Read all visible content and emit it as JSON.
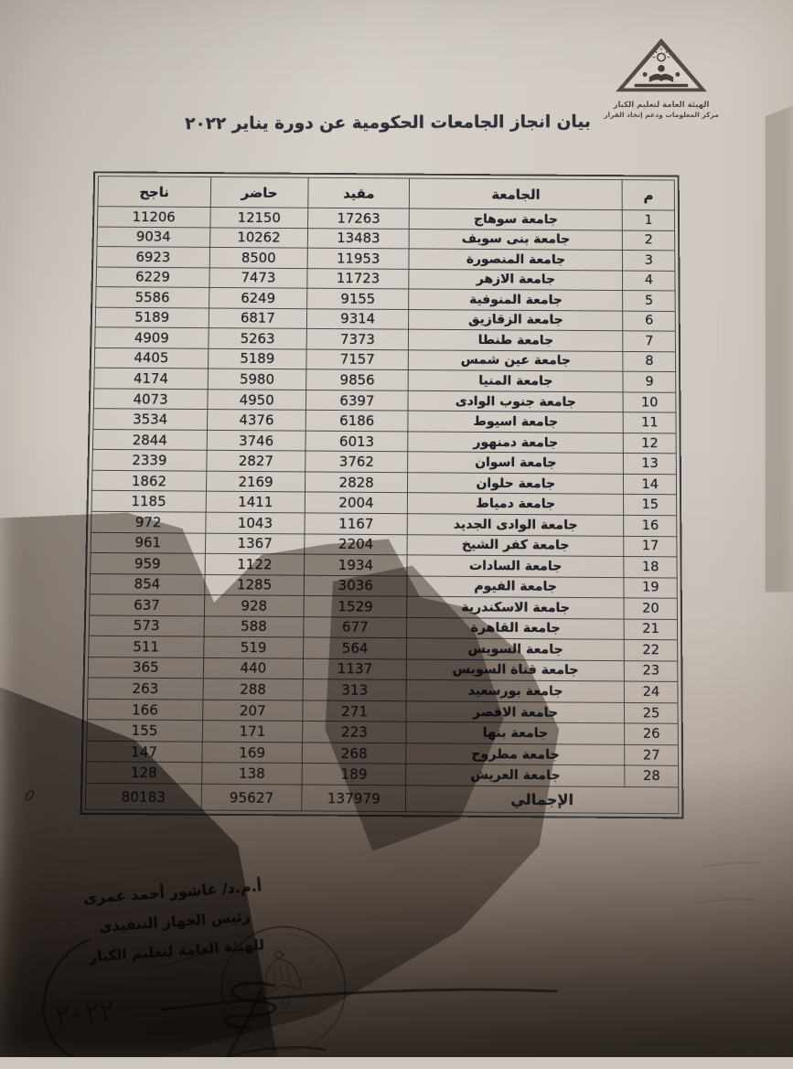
{
  "page": {
    "kind": "scanned-photographed-document",
    "paper_color": "#cfc8c0",
    "ink_color": "#26262a",
    "shadow_color": "#3a2f28"
  },
  "logo": {
    "icon": "pyramid-book-logo",
    "org_line1": "الهيئة العامة لتعليم الكبار",
    "org_line2": "مركز المعلومات ودعم إتخاذ القرار"
  },
  "doc": {
    "title": "بيان انجاز الجامعات الحكومية عن دورة يناير ٢٠٢٢"
  },
  "table": {
    "headers": {
      "rank": "م",
      "university": "الجامعة",
      "enrolled": "مقيد",
      "attended": "حاضر",
      "passed": "ناجح"
    },
    "rows": [
      {
        "rank": "1",
        "university": "جامعة سوهاج",
        "enrolled": "17263",
        "attended": "12150",
        "passed": "11206"
      },
      {
        "rank": "2",
        "university": "جامعة بنى سويف",
        "enrolled": "13483",
        "attended": "10262",
        "passed": "9034"
      },
      {
        "rank": "3",
        "university": "جامعة المنصورة",
        "enrolled": "11953",
        "attended": "8500",
        "passed": "6923"
      },
      {
        "rank": "4",
        "university": "جامعة الازهر",
        "enrolled": "11723",
        "attended": "7473",
        "passed": "6229"
      },
      {
        "rank": "5",
        "university": "جامعة المنوفية",
        "enrolled": "9155",
        "attended": "6249",
        "passed": "5586"
      },
      {
        "rank": "6",
        "university": "جامعة الزقازيق",
        "enrolled": "9314",
        "attended": "6817",
        "passed": "5189"
      },
      {
        "rank": "7",
        "university": "جامعة طنطا",
        "enrolled": "7373",
        "attended": "5263",
        "passed": "4909"
      },
      {
        "rank": "8",
        "university": "جامعة عين شمس",
        "enrolled": "7157",
        "attended": "5189",
        "passed": "4405"
      },
      {
        "rank": "9",
        "university": "جامعة المنيا",
        "enrolled": "9856",
        "attended": "5980",
        "passed": "4174"
      },
      {
        "rank": "10",
        "university": "جامعة جنوب الوادى",
        "enrolled": "6397",
        "attended": "4950",
        "passed": "4073"
      },
      {
        "rank": "11",
        "university": "جامعة اسيوط",
        "enrolled": "6186",
        "attended": "4376",
        "passed": "3534"
      },
      {
        "rank": "12",
        "university": "جامعة دمنهور",
        "enrolled": "6013",
        "attended": "3746",
        "passed": "2844"
      },
      {
        "rank": "13",
        "university": "جامعة اسوان",
        "enrolled": "3762",
        "attended": "2827",
        "passed": "2339"
      },
      {
        "rank": "14",
        "university": "جامعة حلوان",
        "enrolled": "2828",
        "attended": "2169",
        "passed": "1862"
      },
      {
        "rank": "15",
        "university": "جامعة دمياط",
        "enrolled": "2004",
        "attended": "1411",
        "passed": "1185"
      },
      {
        "rank": "16",
        "university": "جامعة الوادى الجديد",
        "enrolled": "1167",
        "attended": "1043",
        "passed": "972"
      },
      {
        "rank": "17",
        "university": "جامعة كفر الشيخ",
        "enrolled": "2204",
        "attended": "1367",
        "passed": "961"
      },
      {
        "rank": "18",
        "university": "جامعة السادات",
        "enrolled": "1934",
        "attended": "1122",
        "passed": "959"
      },
      {
        "rank": "19",
        "university": "جامعة الفيوم",
        "enrolled": "3036",
        "attended": "1285",
        "passed": "854"
      },
      {
        "rank": "20",
        "university": "جامعة الاسكندرية",
        "enrolled": "1529",
        "attended": "928",
        "passed": "637"
      },
      {
        "rank": "21",
        "university": "جامعة القاهرة",
        "enrolled": "677",
        "attended": "588",
        "passed": "573"
      },
      {
        "rank": "22",
        "university": "جامعة السويس",
        "enrolled": "564",
        "attended": "519",
        "passed": "511"
      },
      {
        "rank": "23",
        "university": "جامعة قناة السويس",
        "enrolled": "1137",
        "attended": "440",
        "passed": "365"
      },
      {
        "rank": "24",
        "university": "جامعة بورسعيد",
        "enrolled": "313",
        "attended": "288",
        "passed": "263"
      },
      {
        "rank": "25",
        "university": "جامعة الاقصر",
        "enrolled": "271",
        "attended": "207",
        "passed": "166"
      },
      {
        "rank": "26",
        "university": "جامعة بنها",
        "enrolled": "223",
        "attended": "171",
        "passed": "155"
      },
      {
        "rank": "27",
        "university": "جامعة مطروح",
        "enrolled": "268",
        "attended": "169",
        "passed": "147"
      },
      {
        "rank": "28",
        "university": "جامعة العريش",
        "enrolled": "189",
        "attended": "138",
        "passed": "128"
      }
    ],
    "total": {
      "label": "الإجمالي",
      "enrolled": "137979",
      "attended": "95627",
      "passed": "80183"
    }
  },
  "signature": {
    "name": "أ.م.د/ عاشور أحمد عمرى",
    "title_line1": "رئيس الجهاز التنفيذى",
    "title_line2": "للهيئة العامة لتعليم الكبار",
    "handwritten_year": "٢٠٢٢"
  },
  "stamp": {
    "icon": "eagle-official-seal"
  }
}
